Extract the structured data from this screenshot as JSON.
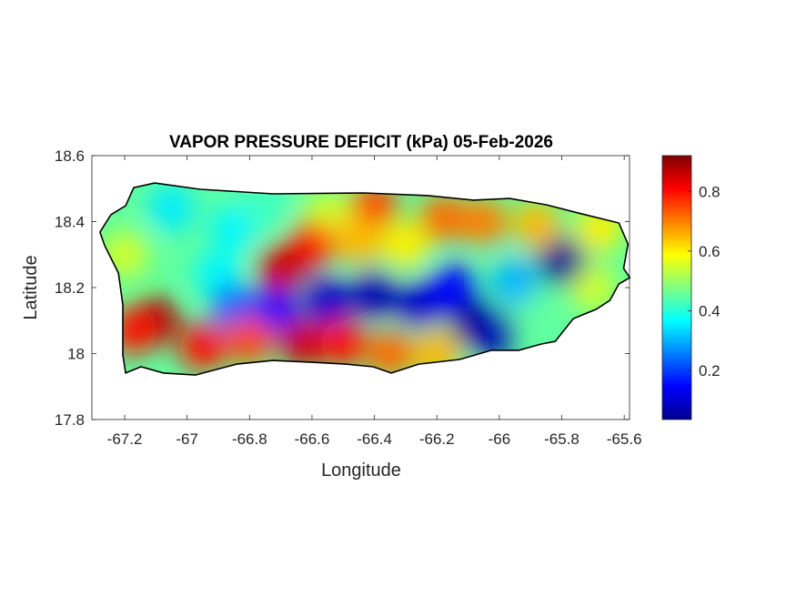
{
  "chart_data": {
    "type": "heatmap",
    "title": "VAPOR PRESSURE DEFICIT (kPa) 05-Feb-2026",
    "xlabel": "Longitude",
    "ylabel": "Latitude",
    "xlim": [
      -67.305,
      -65.583
    ],
    "ylim": [
      17.8,
      18.6
    ],
    "xticks": [
      -67.2,
      -67,
      -66.8,
      -66.6,
      -66.4,
      -66.2,
      -66,
      -65.8,
      -65.6
    ],
    "xtick_labels": [
      "-67.2",
      "-67",
      "-66.8",
      "-66.6",
      "-66.4",
      "-66.2",
      "-66",
      "-65.8",
      "-65.6"
    ],
    "yticks": [
      17.8,
      18,
      18.2,
      18.4,
      18.6
    ],
    "ytick_labels": [
      "17.8",
      "18",
      "18.2",
      "18.4",
      "18.6"
    ],
    "colormap": "jet",
    "clim": [
      0.035,
      0.92
    ],
    "colorbar_ticks": [
      0.2,
      0.4,
      0.6,
      0.8
    ],
    "colorbar_tick_labels": [
      "0.2",
      "0.4",
      "0.6",
      "0.8"
    ],
    "base_value": 0.45,
    "outline": [
      [
        -67.279,
        18.368
      ],
      [
        -67.244,
        18.421
      ],
      [
        -67.197,
        18.448
      ],
      [
        -67.171,
        18.503
      ],
      [
        -67.104,
        18.517
      ],
      [
        -66.958,
        18.498
      ],
      [
        -66.725,
        18.484
      ],
      [
        -66.433,
        18.487
      ],
      [
        -66.229,
        18.479
      ],
      [
        -66.083,
        18.465
      ],
      [
        -65.967,
        18.47
      ],
      [
        -65.85,
        18.451
      ],
      [
        -65.734,
        18.423
      ],
      [
        -65.617,
        18.396
      ],
      [
        -65.588,
        18.332
      ],
      [
        -65.602,
        18.258
      ],
      [
        -65.582,
        18.23
      ],
      [
        -65.617,
        18.211
      ],
      [
        -65.646,
        18.161
      ],
      [
        -65.69,
        18.134
      ],
      [
        -65.763,
        18.106
      ],
      [
        -65.821,
        18.037
      ],
      [
        -65.865,
        18.029
      ],
      [
        -65.938,
        18.01
      ],
      [
        -66.025,
        18.01
      ],
      [
        -66.127,
        17.982
      ],
      [
        -66.258,
        17.968
      ],
      [
        -66.346,
        17.941
      ],
      [
        -66.404,
        17.96
      ],
      [
        -66.492,
        17.968
      ],
      [
        -66.608,
        17.974
      ],
      [
        -66.725,
        17.979
      ],
      [
        -66.841,
        17.968
      ],
      [
        -66.973,
        17.935
      ],
      [
        -67.075,
        17.941
      ],
      [
        -67.148,
        17.96
      ],
      [
        -67.197,
        17.941
      ],
      [
        -67.206,
        17.996
      ],
      [
        -67.206,
        18.148
      ],
      [
        -67.22,
        18.244
      ],
      [
        -67.264,
        18.327
      ]
    ],
    "field_samples": [
      {
        "lon": -67.05,
        "lat": 18.44,
        "value": 0.35
      },
      {
        "lon": -66.85,
        "lat": 18.38,
        "value": 0.36
      },
      {
        "lon": -66.9,
        "lat": 18.24,
        "value": 0.36
      },
      {
        "lon": -67.2,
        "lat": 18.3,
        "value": 0.55
      },
      {
        "lon": -66.75,
        "lat": 18.45,
        "value": 0.42
      },
      {
        "lon": -66.55,
        "lat": 18.42,
        "value": 0.55
      },
      {
        "lon": -65.7,
        "lat": 18.2,
        "value": 0.55
      },
      {
        "lon": -65.68,
        "lat": 18.38,
        "value": 0.6
      },
      {
        "lon": -65.9,
        "lat": 18.15,
        "value": 0.45
      },
      {
        "lon": -66.85,
        "lat": 18.14,
        "value": 0.22
      },
      {
        "lon": -66.72,
        "lat": 18.13,
        "value": 0.15
      },
      {
        "lon": -66.55,
        "lat": 18.16,
        "value": 0.1
      },
      {
        "lon": -66.4,
        "lat": 18.18,
        "value": 0.08
      },
      {
        "lon": -66.25,
        "lat": 18.15,
        "value": 0.1
      },
      {
        "lon": -66.15,
        "lat": 18.2,
        "value": 0.15
      },
      {
        "lon": -66.08,
        "lat": 18.09,
        "value": 0.05
      },
      {
        "lon": -66.02,
        "lat": 18.06,
        "value": 0.08
      },
      {
        "lon": -65.8,
        "lat": 18.28,
        "value": 0.05
      },
      {
        "lon": -65.95,
        "lat": 18.22,
        "value": 0.3
      },
      {
        "lon": -67.1,
        "lat": 18.1,
        "value": 0.88
      },
      {
        "lon": -67.17,
        "lat": 18.07,
        "value": 0.8
      },
      {
        "lon": -66.95,
        "lat": 18.02,
        "value": 0.8
      },
      {
        "lon": -66.8,
        "lat": 18.04,
        "value": 0.75
      },
      {
        "lon": -66.63,
        "lat": 18.03,
        "value": 0.85
      },
      {
        "lon": -66.5,
        "lat": 18.03,
        "value": 0.8
      },
      {
        "lon": -66.35,
        "lat": 18.0,
        "value": 0.72
      },
      {
        "lon": -66.2,
        "lat": 18.0,
        "value": 0.65
      },
      {
        "lon": -66.6,
        "lat": 18.33,
        "value": 0.8
      },
      {
        "lon": -66.7,
        "lat": 18.26,
        "value": 0.85
      },
      {
        "lon": -66.4,
        "lat": 18.45,
        "value": 0.75
      },
      {
        "lon": -66.18,
        "lat": 18.41,
        "value": 0.72
      },
      {
        "lon": -66.05,
        "lat": 18.4,
        "value": 0.7
      },
      {
        "lon": -65.88,
        "lat": 18.39,
        "value": 0.65
      },
      {
        "lon": -66.45,
        "lat": 18.34,
        "value": 0.65
      },
      {
        "lon": -66.3,
        "lat": 18.33,
        "value": 0.6
      }
    ]
  }
}
